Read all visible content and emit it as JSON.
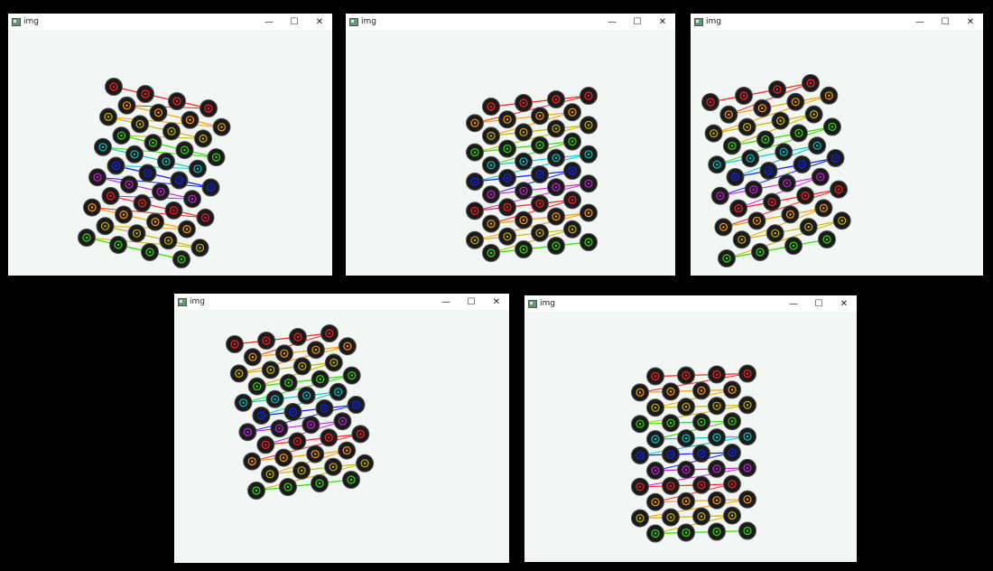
{
  "windows": [
    {
      "title": "img",
      "minimize_icon": "minimize-icon",
      "maximize_icon": "maximize-icon",
      "close_icon": "close-icon"
    },
    {
      "title": "img",
      "minimize_icon": "minimize-icon",
      "maximize_icon": "maximize-icon",
      "close_icon": "close-icon"
    },
    {
      "title": "img",
      "minimize_icon": "minimize-icon",
      "maximize_icon": "maximize-icon",
      "close_icon": "close-icon"
    },
    {
      "title": "img",
      "minimize_icon": "minimize-icon",
      "maximize_icon": "maximize-icon",
      "close_icon": "close-icon"
    },
    {
      "title": "img",
      "minimize_icon": "minimize-icon",
      "maximize_icon": "maximize-icon",
      "close_icon": "close-icon"
    }
  ],
  "controls": {
    "minimize": "—",
    "maximize": "☐",
    "close": "✕"
  },
  "pattern": {
    "rows": 11,
    "cols": 4,
    "row_colors": [
      "#ff2020",
      "#ff9a00",
      "#c8b400",
      "#2ee000",
      "#00c8c8",
      "#1020ff",
      "#d020e0",
      "#ff2020",
      "#ff9a00",
      "#c8b400",
      "#2ee000"
    ]
  }
}
